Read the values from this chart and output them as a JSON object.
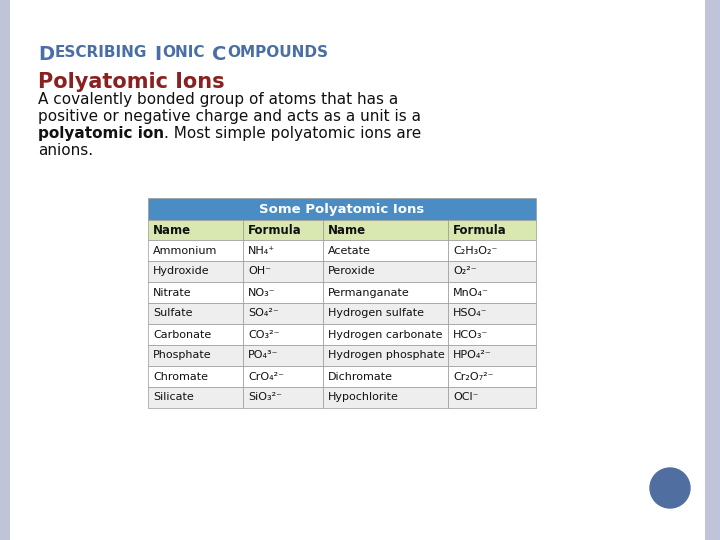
{
  "title": "Describing Ionic Compounds",
  "subtitle": "Polyatomic Ions",
  "table_title": "Some Polyatomic Ions",
  "table_header": [
    "Name",
    "Formula",
    "Name",
    "Formula"
  ],
  "table_rows": [
    [
      "Ammonium",
      "NH₄⁺",
      "Acetate",
      "C₂H₃O₂⁻"
    ],
    [
      "Hydroxide",
      "OH⁻",
      "Peroxide",
      "O₂²⁻"
    ],
    [
      "Nitrate",
      "NO₃⁻",
      "Permanganate",
      "MnO₄⁻"
    ],
    [
      "Sulfate",
      "SO₄²⁻",
      "Hydrogen sulfate",
      "HSO₄⁻"
    ],
    [
      "Carbonate",
      "CO₃²⁻",
      "Hydrogen carbonate",
      "HCO₃⁻"
    ],
    [
      "Phosphate",
      "PO₄³⁻",
      "Hydrogen phosphate",
      "HPO₄²⁻"
    ],
    [
      "Chromate",
      "CrO₄²⁻",
      "Dichromate",
      "Cr₂O₇²⁻"
    ],
    [
      "Silicate",
      "SiO₃²⁻",
      "Hypochlorite",
      "OCl⁻"
    ]
  ],
  "bg_color": "#c8cce0",
  "slide_bg": "#ffffff",
  "title_color": "#4a6fa5",
  "subtitle_color": "#8b2020",
  "table_header_bg": "#4a8cc4",
  "table_header_text": "#ffffff",
  "table_subheader_bg": "#d8e8b0",
  "table_row_bg_odd": "#ffffff",
  "table_row_bg_even": "#eeeeee",
  "table_border_color": "#999999",
  "dot_color": "#506ea0",
  "left_bar_color": "#c0c4d8",
  "right_bar_color": "#c0c4d8"
}
